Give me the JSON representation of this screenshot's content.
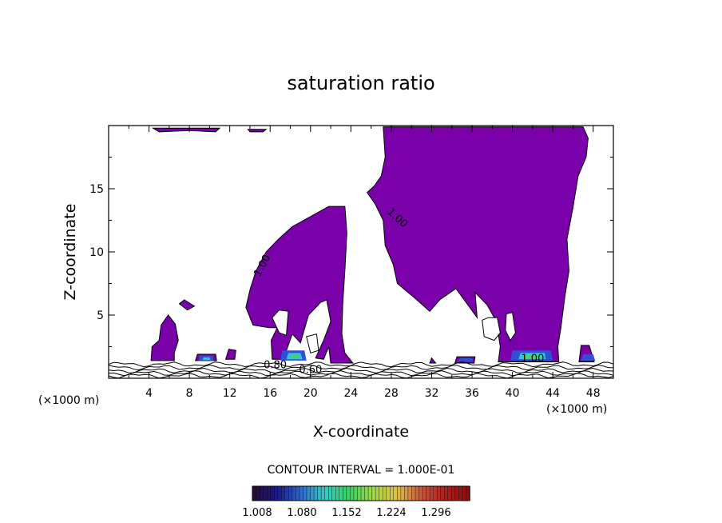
{
  "chart_data": {
    "type": "contour",
    "title": "saturation ratio",
    "xlabel": "X-coordinate",
    "ylabel": "Z-coordinate",
    "x_unit": "(×1000 m)",
    "x_unit_right": "(×1000 m)",
    "xlim": [
      0,
      50
    ],
    "ylim": [
      0,
      20
    ],
    "xticks": [
      4,
      8,
      12,
      16,
      20,
      24,
      28,
      32,
      36,
      40,
      44,
      48
    ],
    "yticks": [
      5,
      10,
      15
    ],
    "contour_interval_text": "CONTOUR INTERVAL = 1.000E-01",
    "contour_labels": [
      {
        "text": "1.00",
        "x": 15.5,
        "z": 8.8
      },
      {
        "text": "1.00",
        "x": 28.4,
        "z": 12.5
      },
      {
        "text": "1.00",
        "x": 42.0,
        "z": 1.3
      },
      {
        "text": "0.80",
        "x": 16.5,
        "z": 0.8
      },
      {
        "text": "0.60",
        "x": 20.0,
        "z": 0.4
      }
    ],
    "colorbar": {
      "ticks": [
        "1.008",
        "1.080",
        "1.152",
        "1.224",
        "1.296"
      ],
      "colors": [
        "#2a0a3a",
        "#1a1a8a",
        "#2d6cd0",
        "#3cc8c0",
        "#3ad060",
        "#a0d84a",
        "#e0c050",
        "#c85a3a",
        "#b02020",
        "#8a1010"
      ]
    },
    "colors": {
      "fill": "#7a00aa",
      "outline": "#000000",
      "blue_patch": "#2e4fd6",
      "cyan_patch": "#34c4d8",
      "green_patch": "#43d46e"
    }
  }
}
